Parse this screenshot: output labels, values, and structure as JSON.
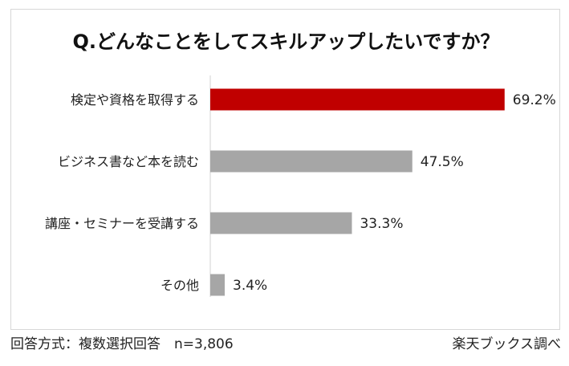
{
  "chart_data": {
    "type": "bar",
    "orientation": "horizontal",
    "title": "Q.どんなことをしてスキルアップしたいですか？",
    "categories": [
      "検定や資格を取得する",
      "ビジネス書など本を読む",
      "講座・セミナーを受講する",
      "その他"
    ],
    "values": [
      69.2,
      47.5,
      33.3,
      3.4
    ],
    "value_labels": [
      "69.2%",
      "47.5%",
      "33.3%",
      "3.4%"
    ],
    "bar_colors": [
      "#c00000",
      "#a6a6a6",
      "#a6a6a6",
      "#a6a6a6"
    ],
    "xlim": [
      0,
      100
    ],
    "grid": false,
    "legend": "none"
  },
  "footer": {
    "note": "回答方式：複数選択回答　n=3,806",
    "source": "楽天ブックス調べ"
  }
}
